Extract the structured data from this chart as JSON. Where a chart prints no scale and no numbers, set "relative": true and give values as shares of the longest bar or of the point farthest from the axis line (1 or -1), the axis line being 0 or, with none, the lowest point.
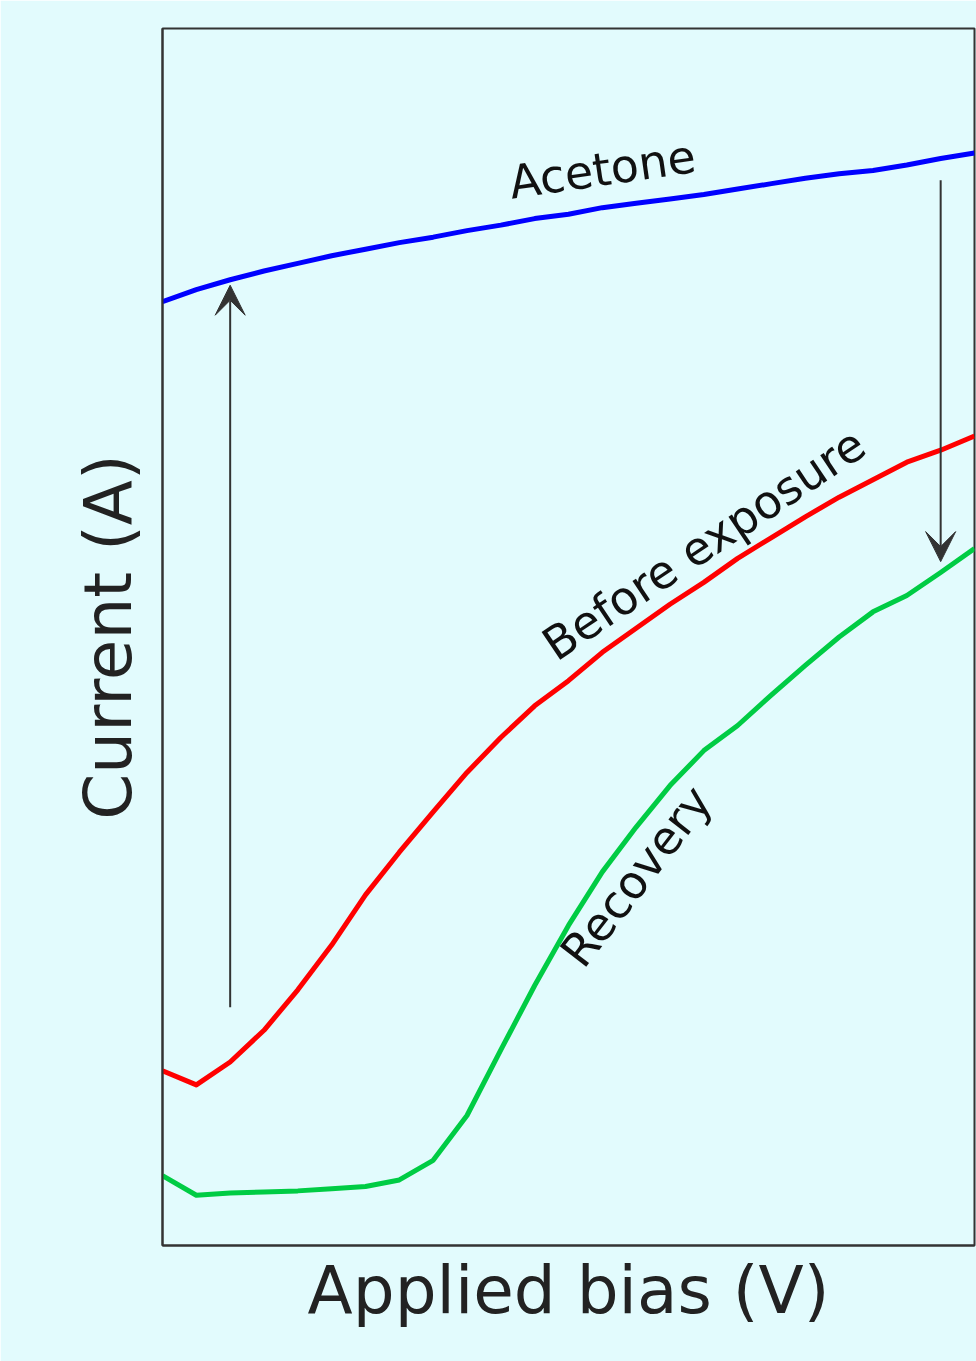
{
  "chart_data": {
    "type": "line",
    "relative": true,
    "xlabel": "Applied bias (V)",
    "ylabel": "Current (A)",
    "categories": [
      null,
      null,
      null,
      null,
      null,
      null,
      null,
      null,
      null,
      null,
      null,
      null,
      null,
      null,
      null,
      null,
      null,
      null,
      null,
      null,
      null,
      null,
      null,
      null,
      null
    ],
    "series": [
      {
        "name": "Acetone",
        "color": "#0000ff",
        "values": [
          0.864,
          0.875,
          0.884,
          0.892,
          0.899,
          0.906,
          0.912,
          0.918,
          0.923,
          0.929,
          0.934,
          0.94,
          0.944,
          0.95,
          0.954,
          0.958,
          0.962,
          0.967,
          0.972,
          0.977,
          0.981,
          0.984,
          0.989,
          0.995,
          1.0
        ]
      },
      {
        "name": "Before exposure",
        "color": "#ff0000",
        "values": [
          0.16,
          0.147,
          0.168,
          0.197,
          0.234,
          0.275,
          0.321,
          0.36,
          0.397,
          0.433,
          0.465,
          0.494,
          0.517,
          0.543,
          0.565,
          0.587,
          0.607,
          0.629,
          0.648,
          0.667,
          0.685,
          0.701,
          0.717,
          0.728,
          0.741
        ]
      },
      {
        "name": "Recovery",
        "color": "#00cc44",
        "values": [
          0.064,
          0.046,
          0.048,
          0.049,
          0.05,
          0.052,
          0.054,
          0.06,
          0.078,
          0.119,
          0.179,
          0.238,
          0.293,
          0.342,
          0.383,
          0.421,
          0.453,
          0.476,
          0.504,
          0.531,
          0.557,
          0.58,
          0.595,
          0.616,
          0.638
        ]
      }
    ],
    "grid": false,
    "marker": "none",
    "line_style": "solid"
  }
}
